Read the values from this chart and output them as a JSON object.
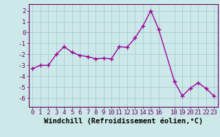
{
  "x": [
    0,
    1,
    2,
    3,
    4,
    5,
    6,
    7,
    8,
    9,
    10,
    11,
    12,
    13,
    14,
    15,
    16,
    18,
    19,
    20,
    21,
    22,
    23
  ],
  "y": [
    -3.3,
    -3.0,
    -3.0,
    -2.0,
    -1.3,
    -1.8,
    -2.1,
    -2.2,
    -2.4,
    -2.35,
    -2.4,
    -1.3,
    -1.35,
    -0.5,
    0.6,
    2.0,
    0.3,
    -4.5,
    -5.8,
    -5.1,
    -4.6,
    -5.1,
    -5.8
  ],
  "line_color": "#990099",
  "marker": "+",
  "markersize": 4,
  "markeredgewidth": 1.0,
  "linewidth": 1.0,
  "bg_color": "#cce8e8",
  "grid_color": "#aacccc",
  "xlabel": "Windchill (Refroidissement éolien,°C)",
  "xlabel_fontsize": 7.5,
  "tick_fontsize": 6.5,
  "ylim": [
    -6.8,
    2.6
  ],
  "xlim": [
    -0.5,
    23.5
  ],
  "yticks": [
    -6,
    -5,
    -4,
    -3,
    -2,
    -1,
    0,
    1,
    2
  ],
  "xticks": [
    0,
    1,
    2,
    3,
    4,
    5,
    6,
    7,
    8,
    9,
    10,
    11,
    12,
    13,
    14,
    15,
    16,
    18,
    19,
    20,
    21,
    22,
    23
  ]
}
